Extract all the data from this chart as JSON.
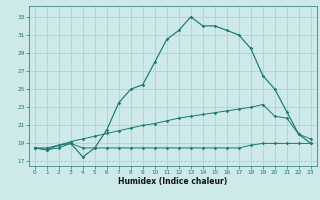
{
  "xlabel": "Humidex (Indice chaleur)",
  "x_values": [
    0,
    1,
    2,
    3,
    4,
    5,
    6,
    7,
    8,
    9,
    10,
    11,
    12,
    13,
    14,
    15,
    16,
    17,
    18,
    19,
    20,
    21,
    22,
    23
  ],
  "line_flat_y": [
    18.5,
    18.3,
    18.5,
    19.0,
    18.5,
    18.5,
    18.5,
    18.5,
    18.5,
    18.5,
    18.5,
    18.5,
    18.5,
    18.5,
    18.5,
    18.5,
    18.5,
    18.5,
    18.8,
    19.0,
    19.0,
    19.0,
    19.0,
    19.0
  ],
  "line_slope_y": [
    18.5,
    18.5,
    18.8,
    19.2,
    19.5,
    19.8,
    20.1,
    20.4,
    20.7,
    21.0,
    21.2,
    21.5,
    21.8,
    22.0,
    22.2,
    22.4,
    22.6,
    22.8,
    23.0,
    23.3,
    22.0,
    21.8,
    20.0,
    19.5
  ],
  "line_main_y": [
    18.5,
    18.3,
    18.8,
    19.0,
    17.5,
    18.5,
    20.5,
    23.5,
    25.0,
    25.5,
    28.0,
    30.5,
    31.5,
    33.0,
    32.0,
    32.0,
    31.5,
    31.0,
    29.5,
    26.5,
    25.0,
    22.5,
    20.0,
    19.0
  ],
  "color": "#1a7a6e",
  "bg_color": "#cde9e9",
  "grid_color": "#aacfcf",
  "xlim": [
    -0.5,
    23.5
  ],
  "ylim": [
    16.5,
    34.2
  ],
  "yticks": [
    17,
    19,
    21,
    23,
    25,
    27,
    29,
    31,
    33
  ],
  "xticks": [
    0,
    1,
    2,
    3,
    4,
    5,
    6,
    7,
    8,
    9,
    10,
    11,
    12,
    13,
    14,
    15,
    16,
    17,
    18,
    19,
    20,
    21,
    22,
    23
  ]
}
